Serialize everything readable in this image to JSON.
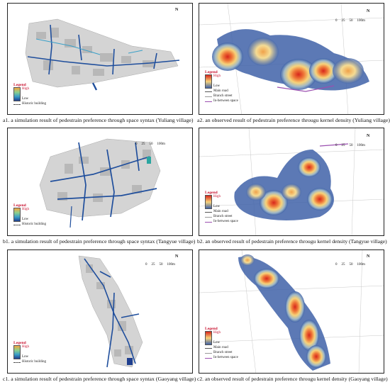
{
  "legend": {
    "title": "Legend",
    "high": "High",
    "low": "Low",
    "historic": "Historic building",
    "main_road": "Main road",
    "branch_street": "Branch street",
    "in_between": "In-between space"
  },
  "scale": {
    "ticks": [
      "0",
      "25",
      "50",
      "100m"
    ]
  },
  "north": "N",
  "captions": {
    "a1": "a1. a simulation result of pedestrain preference through space syntax (Yuliang village)",
    "a2": "a2. an observed result of pedestrain preference througu kernel density (Yuliang village)",
    "b1": "b1. a simulation result of pedestrain preference through space syntax (Tangyue village)",
    "b2": "b2. an observed result of pedestrain preference througu kernel density (Tangyue village)",
    "c1": "c1. a simulation result of pedestrain preference through space syntax (Gaoyang village)",
    "c2": "c2. an observed result of pedestrain preference througu kernel density (Gaoyang village)"
  },
  "colors": {
    "kde_high": "#d7261b",
    "kde_mid": "#f7d37a",
    "kde_low": "#3f62a8",
    "syntax_line": "#1f4e9c",
    "building": "#bdbdbd",
    "inbetween": "#9b4fb0"
  }
}
